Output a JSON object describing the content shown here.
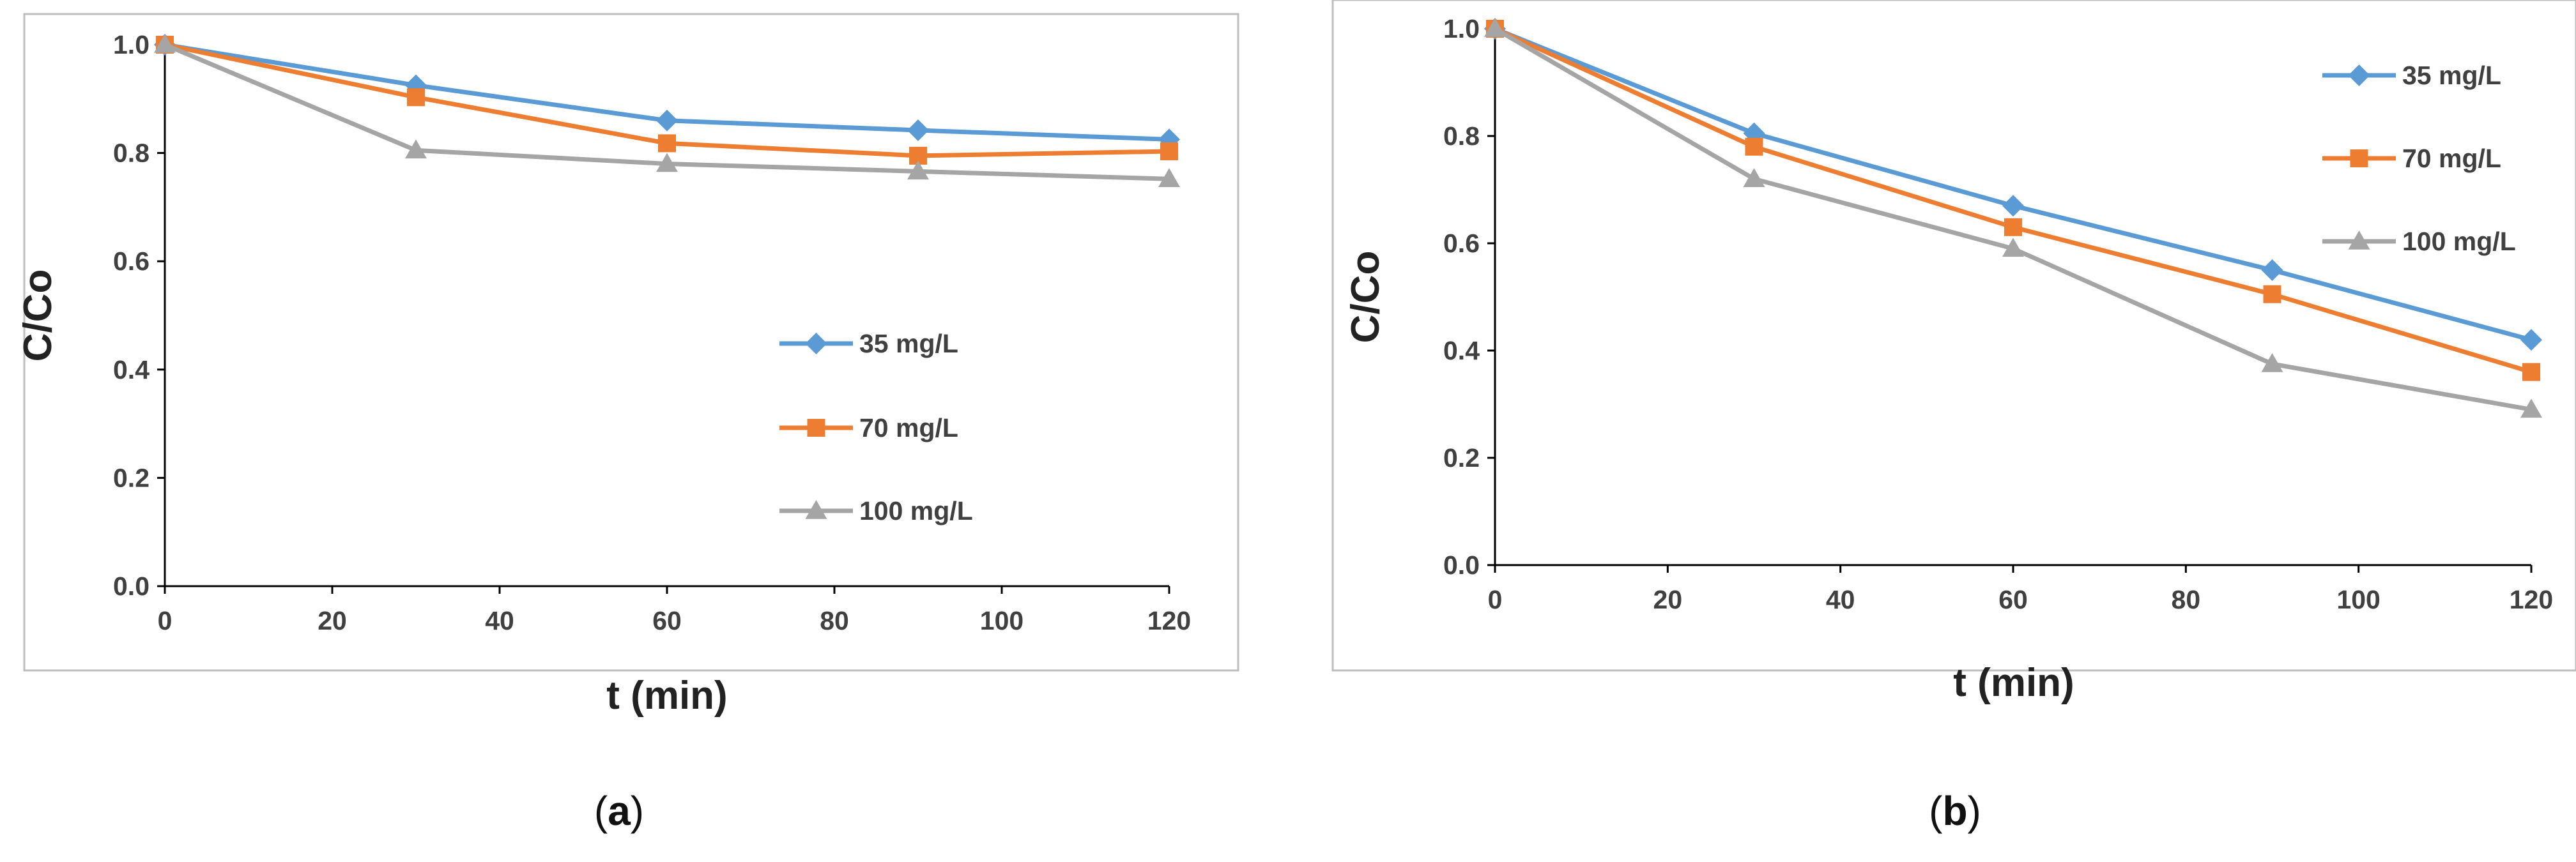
{
  "chart_data": [
    {
      "type": "line",
      "panel_label": "a",
      "xlabel": "t (min)",
      "ylabel": "C/Co",
      "xlim": [
        0,
        120
      ],
      "ylim": [
        0,
        1.0
      ],
      "xticks": [
        "0",
        "20",
        "40",
        "60",
        "80",
        "100",
        "120"
      ],
      "yticks": [
        "0.0",
        "0.2",
        "0.4",
        "0.6",
        "0.8",
        "1.0"
      ],
      "grid": false,
      "legend_position": "center-right",
      "series": [
        {
          "name": "35 mg/L",
          "color": "#5b9bd5",
          "marker": "diamond",
          "x": [
            0,
            30,
            60,
            90,
            120
          ],
          "y": [
            1.0,
            0.925,
            0.86,
            0.842,
            0.825
          ]
        },
        {
          "name": "70 mg/L",
          "color": "#ed7d31",
          "marker": "square",
          "x": [
            0,
            30,
            60,
            90,
            120
          ],
          "y": [
            1.0,
            0.903,
            0.818,
            0.795,
            0.803
          ]
        },
        {
          "name": "100 mg/L",
          "color": "#a5a5a5",
          "marker": "triangle",
          "x": [
            0,
            30,
            60,
            90,
            120
          ],
          "y": [
            1.0,
            0.805,
            0.78,
            0.766,
            0.752
          ]
        }
      ]
    },
    {
      "type": "line",
      "panel_label": "b",
      "xlabel": "t (min)",
      "ylabel": "C/Co",
      "xlim": [
        0,
        120
      ],
      "ylim": [
        0,
        1.0
      ],
      "xticks": [
        "0",
        "20",
        "40",
        "60",
        "80",
        "100",
        "120"
      ],
      "yticks": [
        "0.0",
        "0.2",
        "0.4",
        "0.6",
        "0.8",
        "1.0"
      ],
      "grid": false,
      "legend_position": "top-right",
      "series": [
        {
          "name": "35 mg/L",
          "color": "#5b9bd5",
          "marker": "diamond",
          "x": [
            0,
            30,
            60,
            90,
            120
          ],
          "y": [
            1.0,
            0.805,
            0.67,
            0.55,
            0.42
          ]
        },
        {
          "name": "70 mg/L",
          "color": "#ed7d31",
          "marker": "square",
          "x": [
            0,
            30,
            60,
            90,
            120
          ],
          "y": [
            1.0,
            0.78,
            0.63,
            0.505,
            0.36
          ]
        },
        {
          "name": "100 mg/L",
          "color": "#a5a5a5",
          "marker": "triangle",
          "x": [
            0,
            30,
            60,
            90,
            120
          ],
          "y": [
            1.0,
            0.72,
            0.59,
            0.375,
            0.29
          ]
        }
      ]
    }
  ]
}
